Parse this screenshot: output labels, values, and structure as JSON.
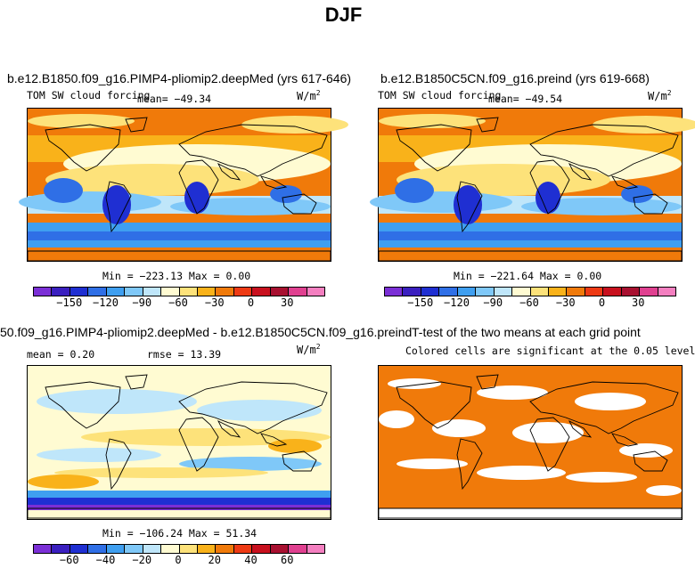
{
  "figure_title": "DJF",
  "panels": {
    "p1": {
      "title": "b.e12.B1850.f09_g16.PIMP4-pliomip2.deepMed (yrs 617-646)",
      "variable": "TOM SW cloud forcing",
      "mean_text": "mean= −49.34",
      "units_base": "W/m",
      "units_exp": "2",
      "minmax": "Min = −223.13 Max =    0.00"
    },
    "p2": {
      "title": "b.e12.B1850C5CN.f09_g16.preind (yrs 619-668)",
      "variable": "TOM SW cloud forcing",
      "mean_text": "mean= −49.54",
      "units_base": "W/m",
      "units_exp": "2",
      "minmax": "Min = −221.64 Max =    0.00"
    },
    "p3": {
      "title": "50.f09_g16.PIMP4-pliomip2.deepMed - b.e12.B1850C5CN.f09_g16.preind",
      "mean_text": "mean =    0.20",
      "rmse_text": "rmse =  13.39",
      "units_base": "W/m",
      "units_exp": "2",
      "minmax": "Min = −106.24 Max =  51.34"
    },
    "p4": {
      "title": "T-test of the two means at each grid point",
      "subtitle": "Colored cells are significant at the 0.05 level"
    }
  },
  "colorbar_abs": {
    "colors": [
      "#7b2fd6",
      "#3a1fbf",
      "#1f2fd2",
      "#2f6fe6",
      "#3f9ff0",
      "#7fc8f8",
      "#bfe6fa",
      "#fffbd2",
      "#fde27a",
      "#f9b21a",
      "#f07a0a",
      "#ee3a14",
      "#c8101e",
      "#a81030",
      "#e04090",
      "#f47fc0"
    ],
    "tick_labels": [
      "−150",
      "−120",
      "−90",
      "−60",
      "−30",
      "0",
      "30"
    ]
  },
  "colorbar_diff": {
    "colors": [
      "#7b2fd6",
      "#3a1fbf",
      "#1f2fd2",
      "#2f6fe6",
      "#3f9ff0",
      "#7fc8f8",
      "#bfe6fa",
      "#fffbd2",
      "#fde27a",
      "#f9b21a",
      "#f07a0a",
      "#ee3a14",
      "#c8101e",
      "#a81030",
      "#e04090",
      "#f47fc0"
    ],
    "tick_labels": [
      "−60",
      "−40",
      "−20",
      "0",
      "20",
      "40",
      "60"
    ]
  },
  "chart_data": [
    {
      "type": "heatmap",
      "title": "b.e12.B1850.f09_g16.PIMP4-pliomip2.deepMed (yrs 617-646)",
      "variable": "TOM SW cloud forcing",
      "units": "W/m2",
      "mean": -49.34,
      "min": -223.13,
      "max": 0.0,
      "colorbar_ticks": [
        -150,
        -120,
        -90,
        -60,
        -30,
        0,
        30
      ]
    },
    {
      "type": "heatmap",
      "title": "b.e12.B1850C5CN.f09_g16.preind (yrs 619-668)",
      "variable": "TOM SW cloud forcing",
      "units": "W/m2",
      "mean": -49.54,
      "min": -221.64,
      "max": 0.0,
      "colorbar_ticks": [
        -150,
        -120,
        -90,
        -60,
        -30,
        0,
        30
      ]
    },
    {
      "type": "heatmap",
      "title": "50.f09_g16.PIMP4-pliomip2.deepMed - b.e12.B1850C5CN.f09_g16.preind",
      "units": "W/m2",
      "mean": 0.2,
      "rmse": 13.39,
      "min": -106.24,
      "max": 51.34,
      "colorbar_ticks": [
        -60,
        -40,
        -20,
        0,
        20,
        40,
        60
      ]
    },
    {
      "type": "heatmap",
      "title": "T-test of the two means at each grid point",
      "subtitle": "Colored cells are significant at the 0.05 level"
    }
  ]
}
